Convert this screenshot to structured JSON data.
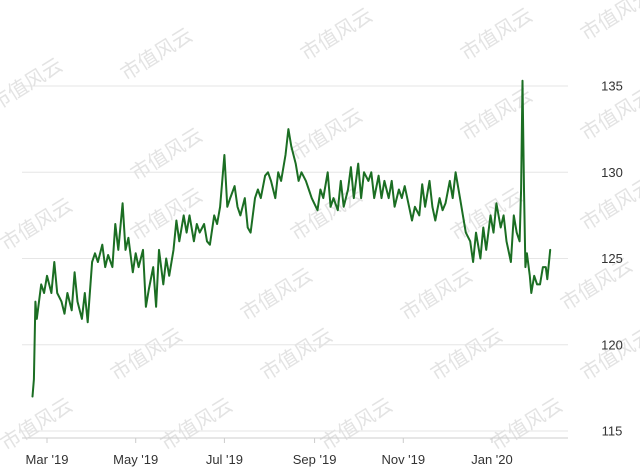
{
  "chart_data": {
    "type": "line",
    "title": "",
    "xlabel": "",
    "ylabel": "",
    "ylim": [
      115,
      137
    ],
    "y_ticks": [
      115,
      120,
      125,
      130,
      135
    ],
    "y_axis_side": "right",
    "grid": "horizontal",
    "legend": "none",
    "line_color": "#1b6e23",
    "x_ticks": [
      {
        "label": "Mar '19",
        "date": "2019-03-01"
      },
      {
        "label": "May '19",
        "date": "2019-05-01"
      },
      {
        "label": "Jul '19",
        "date": "2019-07-01"
      },
      {
        "label": "Sep '19",
        "date": "2019-09-01"
      },
      {
        "label": "Nov '19",
        "date": "2019-11-01"
      },
      {
        "label": "Jan '20",
        "date": "2020-01-01"
      }
    ],
    "x_range": [
      "2019-02-18",
      "2020-02-13"
    ],
    "series": [
      {
        "values": [
          [
            "2019-02-19",
            117.0
          ],
          [
            "2019-02-20",
            118.0
          ],
          [
            "2019-02-21",
            122.5
          ],
          [
            "2019-02-22",
            121.5
          ],
          [
            "2019-02-25",
            123.5
          ],
          [
            "2019-02-27",
            123.0
          ],
          [
            "2019-03-01",
            124.0
          ],
          [
            "2019-03-04",
            123.0
          ],
          [
            "2019-03-06",
            124.8
          ],
          [
            "2019-03-08",
            123.0
          ],
          [
            "2019-03-11",
            122.5
          ],
          [
            "2019-03-13",
            121.8
          ],
          [
            "2019-03-15",
            123.0
          ],
          [
            "2019-03-18",
            122.0
          ],
          [
            "2019-03-20",
            124.2
          ],
          [
            "2019-03-22",
            122.5
          ],
          [
            "2019-03-25",
            121.5
          ],
          [
            "2019-03-27",
            123.0
          ],
          [
            "2019-03-29",
            121.3
          ],
          [
            "2019-04-01",
            124.8
          ],
          [
            "2019-04-03",
            125.3
          ],
          [
            "2019-04-05",
            124.8
          ],
          [
            "2019-04-08",
            125.8
          ],
          [
            "2019-04-10",
            124.5
          ],
          [
            "2019-04-12",
            125.2
          ],
          [
            "2019-04-15",
            124.5
          ],
          [
            "2019-04-17",
            127.0
          ],
          [
            "2019-04-19",
            125.5
          ],
          [
            "2019-04-22",
            128.2
          ],
          [
            "2019-04-24",
            125.5
          ],
          [
            "2019-04-26",
            126.2
          ],
          [
            "2019-04-29",
            124.2
          ],
          [
            "2019-05-01",
            125.3
          ],
          [
            "2019-05-03",
            124.5
          ],
          [
            "2019-05-06",
            125.5
          ],
          [
            "2019-05-08",
            122.2
          ],
          [
            "2019-05-10",
            123.2
          ],
          [
            "2019-05-13",
            124.5
          ],
          [
            "2019-05-15",
            122.2
          ],
          [
            "2019-05-17",
            125.5
          ],
          [
            "2019-05-20",
            123.5
          ],
          [
            "2019-05-22",
            125.0
          ],
          [
            "2019-05-24",
            124.0
          ],
          [
            "2019-05-27",
            125.5
          ],
          [
            "2019-05-29",
            127.2
          ],
          [
            "2019-05-31",
            126.0
          ],
          [
            "2019-06-03",
            127.5
          ],
          [
            "2019-06-05",
            126.5
          ],
          [
            "2019-06-07",
            127.5
          ],
          [
            "2019-06-10",
            126.0
          ],
          [
            "2019-06-12",
            127.0
          ],
          [
            "2019-06-14",
            126.5
          ],
          [
            "2019-06-17",
            127.0
          ],
          [
            "2019-06-19",
            126.0
          ],
          [
            "2019-06-21",
            125.8
          ],
          [
            "2019-06-24",
            127.5
          ],
          [
            "2019-06-26",
            127.0
          ],
          [
            "2019-06-28",
            128.0
          ],
          [
            "2019-07-01",
            131.0
          ],
          [
            "2019-07-03",
            128.0
          ],
          [
            "2019-07-05",
            128.5
          ],
          [
            "2019-07-08",
            129.2
          ],
          [
            "2019-07-10",
            128.0
          ],
          [
            "2019-07-12",
            127.5
          ],
          [
            "2019-07-15",
            128.5
          ],
          [
            "2019-07-17",
            126.8
          ],
          [
            "2019-07-19",
            126.5
          ],
          [
            "2019-07-22",
            128.5
          ],
          [
            "2019-07-24",
            129.0
          ],
          [
            "2019-07-26",
            128.5
          ],
          [
            "2019-07-29",
            129.8
          ],
          [
            "2019-07-31",
            130.0
          ],
          [
            "2019-08-02",
            129.5
          ],
          [
            "2019-08-05",
            128.5
          ],
          [
            "2019-08-07",
            130.0
          ],
          [
            "2019-08-09",
            129.5
          ],
          [
            "2019-08-12",
            131.0
          ],
          [
            "2019-08-14",
            132.5
          ],
          [
            "2019-08-16",
            131.5
          ],
          [
            "2019-08-19",
            130.5
          ],
          [
            "2019-08-21",
            129.5
          ],
          [
            "2019-08-23",
            130.0
          ],
          [
            "2019-08-26",
            129.5
          ],
          [
            "2019-08-28",
            129.0
          ],
          [
            "2019-08-30",
            128.5
          ],
          [
            "2019-09-03",
            127.8
          ],
          [
            "2019-09-05",
            129.0
          ],
          [
            "2019-09-07",
            128.5
          ],
          [
            "2019-09-10",
            130.0
          ],
          [
            "2019-09-12",
            128.0
          ],
          [
            "2019-09-14",
            128.5
          ],
          [
            "2019-09-17",
            127.8
          ],
          [
            "2019-09-19",
            129.5
          ],
          [
            "2019-09-21",
            128.0
          ],
          [
            "2019-09-24",
            129.0
          ],
          [
            "2019-09-26",
            130.3
          ],
          [
            "2019-09-28",
            128.5
          ],
          [
            "2019-10-01",
            130.5
          ],
          [
            "2019-10-03",
            128.5
          ],
          [
            "2019-10-05",
            130.0
          ],
          [
            "2019-10-08",
            129.5
          ],
          [
            "2019-10-10",
            130.0
          ],
          [
            "2019-10-12",
            128.5
          ],
          [
            "2019-10-15",
            129.8
          ],
          [
            "2019-10-17",
            128.5
          ],
          [
            "2019-10-19",
            129.5
          ],
          [
            "2019-10-22",
            128.5
          ],
          [
            "2019-10-24",
            129.5
          ],
          [
            "2019-10-26",
            128.0
          ],
          [
            "2019-10-29",
            129.0
          ],
          [
            "2019-10-31",
            128.5
          ],
          [
            "2019-11-02",
            129.2
          ],
          [
            "2019-11-05",
            128.0
          ],
          [
            "2019-11-07",
            127.2
          ],
          [
            "2019-11-09",
            128.0
          ],
          [
            "2019-11-12",
            127.5
          ],
          [
            "2019-11-14",
            129.3
          ],
          [
            "2019-11-16",
            128.0
          ],
          [
            "2019-11-19",
            129.5
          ],
          [
            "2019-11-21",
            128.0
          ],
          [
            "2019-11-23",
            127.2
          ],
          [
            "2019-11-26",
            128.5
          ],
          [
            "2019-11-28",
            127.8
          ],
          [
            "2019-11-30",
            128.2
          ],
          [
            "2019-12-03",
            129.5
          ],
          [
            "2019-12-05",
            128.5
          ],
          [
            "2019-12-07",
            130.0
          ],
          [
            "2019-12-10",
            128.5
          ],
          [
            "2019-12-12",
            127.5
          ],
          [
            "2019-12-14",
            126.5
          ],
          [
            "2019-12-17",
            126.0
          ],
          [
            "2019-12-19",
            124.8
          ],
          [
            "2019-12-21",
            126.5
          ],
          [
            "2019-12-24",
            125.0
          ],
          [
            "2019-12-26",
            126.8
          ],
          [
            "2019-12-28",
            125.5
          ],
          [
            "2019-12-31",
            127.5
          ],
          [
            "2020-01-02",
            126.5
          ],
          [
            "2020-01-04",
            128.2
          ],
          [
            "2020-01-07",
            126.8
          ],
          [
            "2020-01-09",
            127.5
          ],
          [
            "2020-01-11",
            126.0
          ],
          [
            "2020-01-14",
            124.8
          ],
          [
            "2020-01-16",
            127.5
          ],
          [
            "2020-01-18",
            126.5
          ],
          [
            "2020-01-20",
            126.0
          ],
          [
            "2020-01-21",
            129.0
          ],
          [
            "2020-01-22",
            135.3
          ],
          [
            "2020-01-23",
            129.0
          ],
          [
            "2020-01-24",
            124.5
          ],
          [
            "2020-01-25",
            125.3
          ],
          [
            "2020-01-27",
            124.0
          ],
          [
            "2020-01-28",
            123.0
          ],
          [
            "2020-01-30",
            124.0
          ],
          [
            "2020-02-01",
            123.5
          ],
          [
            "2020-02-03",
            123.5
          ],
          [
            "2020-02-05",
            124.5
          ],
          [
            "2020-02-07",
            124.5
          ],
          [
            "2020-02-08",
            123.8
          ],
          [
            "2020-02-10",
            125.5
          ]
        ]
      }
    ]
  },
  "watermark": {
    "text": "市值风云"
  }
}
